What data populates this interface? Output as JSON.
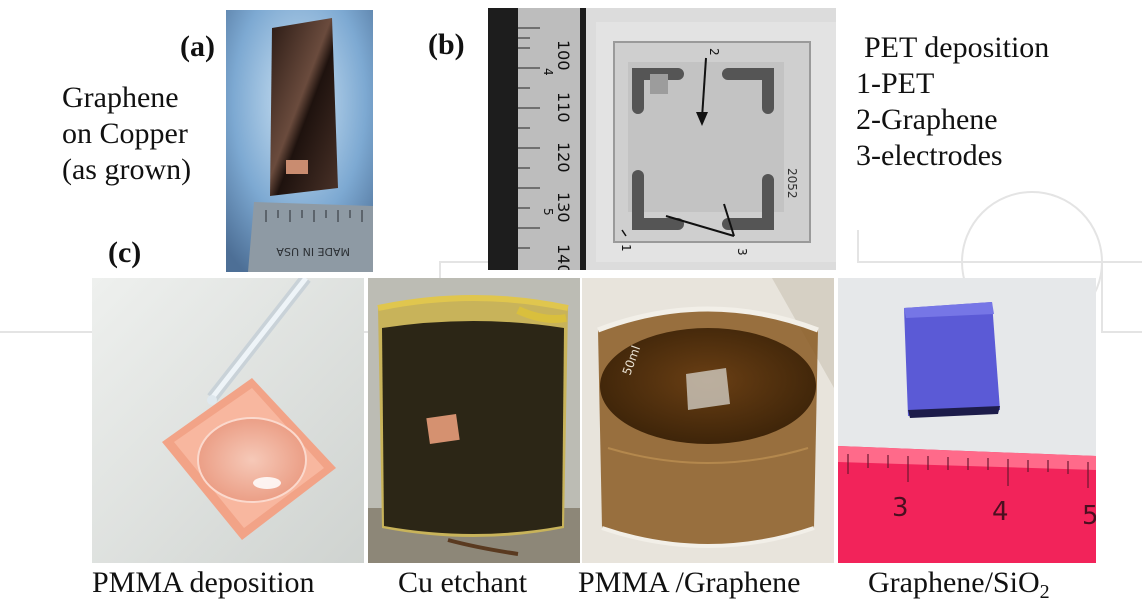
{
  "panel_a": {
    "label": "(a)",
    "caption_lines": [
      "Graphene",
      "on Copper",
      "(as grown)"
    ],
    "ruler_text": "MADE IN USA"
  },
  "panel_b": {
    "label": "(b)",
    "title": "PET deposition",
    "legend": [
      "1-PET",
      "2-Graphene",
      "3-electrodes"
    ],
    "ruler_ticks": [
      "100",
      "110",
      "120",
      "130",
      "140"
    ],
    "ruler_small": [
      "4",
      "5"
    ],
    "markers": [
      "1",
      "2",
      "3"
    ],
    "sample_mark": "2052"
  },
  "panel_c": {
    "label": "(c)",
    "captions": [
      "PMMA deposition",
      "Cu etchant",
      "PMMA /Graphene"
    ],
    "last_caption_main": "Graphene/SiO",
    "last_caption_sub": "2",
    "ruler_ticks": [
      "3",
      "4",
      "5"
    ],
    "beaker_mark": "50ml"
  }
}
